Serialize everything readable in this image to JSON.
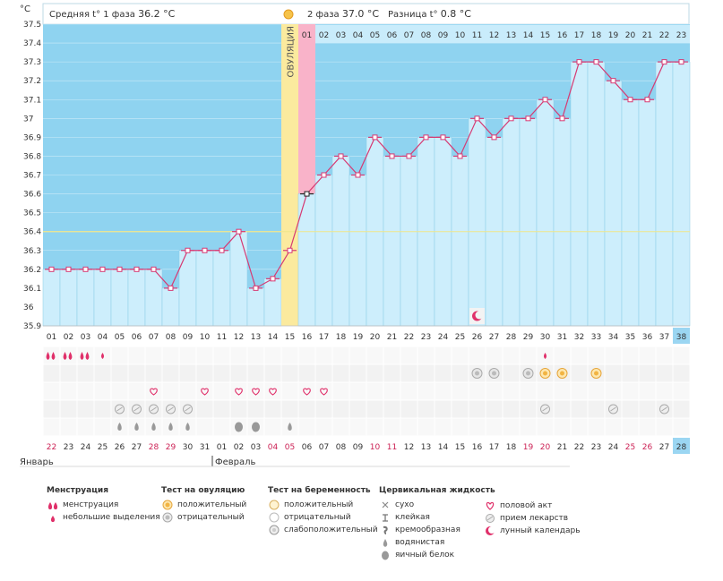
{
  "header": {
    "unit": "°C",
    "phase1_label": "Средняя t° 1 фаза",
    "phase1_value": "36.2 °C",
    "phase2_label": "2 фаза",
    "phase2_value": "37.0 °C",
    "diff_label": "Разница t°",
    "diff_value": "0.8 °C"
  },
  "chart_data": {
    "type": "area",
    "ylim": [
      35.9,
      37.5
    ],
    "yticks": [
      "37.5",
      "37.4",
      "37.3",
      "37.2",
      "37.1",
      "37",
      "36.9",
      "36.8",
      "36.7",
      "36.6",
      "36.5",
      "36.4",
      "36.3",
      "36.2",
      "36.1",
      "36",
      "35.9"
    ],
    "cycle_days": [
      "01",
      "02",
      "03",
      "04",
      "05",
      "06",
      "07",
      "08",
      "09",
      "10",
      "11",
      "12",
      "13",
      "14",
      "15",
      "16",
      "17",
      "18",
      "19",
      "20",
      "21",
      "22",
      "23",
      "24",
      "25",
      "26",
      "27",
      "28",
      "29",
      "30",
      "31",
      "32",
      "33",
      "34",
      "35",
      "36",
      "37",
      "38"
    ],
    "dates": [
      "22",
      "23",
      "24",
      "25",
      "26",
      "27",
      "28",
      "29",
      "30",
      "31",
      "01",
      "02",
      "03",
      "04",
      "05",
      "06",
      "07",
      "08",
      "09",
      "10",
      "11",
      "12",
      "13",
      "14",
      "15",
      "16",
      "17",
      "18",
      "19",
      "20",
      "21",
      "22",
      "23",
      "24",
      "25",
      "26",
      "27",
      "28"
    ],
    "date_colors": [
      "#cc2255",
      "#333333",
      "#333333",
      "#333333",
      "#333333",
      "#333333",
      "#cc2255",
      "#cc2255",
      "#333333",
      "#333333",
      "#333333",
      "#333333",
      "#333333",
      "#cc2255",
      "#cc2255",
      "#333333",
      "#333333",
      "#333333",
      "#333333",
      "#cc2255",
      "#cc2255",
      "#333333",
      "#333333",
      "#333333",
      "#333333",
      "#333333",
      "#333333",
      "#333333",
      "#cc2255",
      "#cc2255",
      "#333333",
      "#333333",
      "#333333",
      "#333333",
      "#cc2255",
      "#cc2255",
      "#333333",
      "#333333"
    ],
    "months": [
      "Январь",
      "Февраль"
    ],
    "temperatures": [
      36.2,
      36.2,
      36.2,
      36.2,
      36.2,
      36.2,
      36.2,
      36.1,
      36.3,
      36.3,
      36.3,
      36.4,
      36.1,
      36.15,
      36.3,
      36.6,
      36.7,
      36.8,
      36.7,
      36.9,
      36.8,
      36.8,
      36.9,
      36.9,
      36.8,
      37.0,
      36.9,
      37.0,
      37.0,
      37.1,
      37.0,
      37.3,
      37.3,
      37.2,
      37.1,
      37.1,
      37.3,
      37.3
    ],
    "ovulation_day": 15,
    "ovulation_label": "ОВУЛЯЦИЯ",
    "cover_line": 36.4,
    "phase2_days": [
      "01",
      "02",
      "03",
      "04",
      "05",
      "06",
      "07",
      "08",
      "09",
      "10",
      "11",
      "12",
      "13",
      "14",
      "15",
      "16",
      "17",
      "18",
      "19",
      "20",
      "21",
      "22",
      "23"
    ],
    "highlight_phase2_day": 16,
    "current_day": 38,
    "moon_day": 26,
    "rows": {
      "menstruation": {
        "1": "heavy",
        "2": "heavy",
        "3": "heavy",
        "4": "light",
        "30": "light"
      },
      "ovulation_test": {
        "26": "neg",
        "27": "neg",
        "29": "neg",
        "30": "pos",
        "31": "pos",
        "33": "pos"
      },
      "intercourse": [
        7,
        10,
        12,
        13,
        14,
        16,
        17
      ],
      "medication": [
        5,
        6,
        7,
        8,
        9,
        30,
        34,
        37
      ],
      "cervical": {
        "5": "watery",
        "6": "watery",
        "7": "watery",
        "8": "watery",
        "9": "watery",
        "12": "eggwhite",
        "13": "eggwhite",
        "15": "watery"
      }
    }
  },
  "legend": {
    "menstruation": {
      "title": "Менструация",
      "items": [
        "менструация",
        "небольшие выделения"
      ]
    },
    "ovulation_test": {
      "title": "Тест на овуляцию",
      "items": [
        "положительный",
        "отрицательный"
      ]
    },
    "pregnancy_test": {
      "title": "Тест на беременность",
      "items": [
        "положительный",
        "отрицательный",
        "слабоположительный"
      ]
    },
    "cervical": {
      "title": "Цервикальная жидкость",
      "items": [
        "сухо",
        "клейкая",
        "кремообразная",
        "водянистая",
        "яичный белок"
      ]
    },
    "other": {
      "items": [
        "половой акт",
        "прием лекарств",
        "лунный календарь"
      ]
    }
  },
  "colors": {
    "bg": "#8fd3f0",
    "col": "#cdeefc",
    "line": "#d63a73",
    "ovulation": "#fbea9e",
    "highlight": "#f9b3c9",
    "current": "#9bd6f2"
  }
}
